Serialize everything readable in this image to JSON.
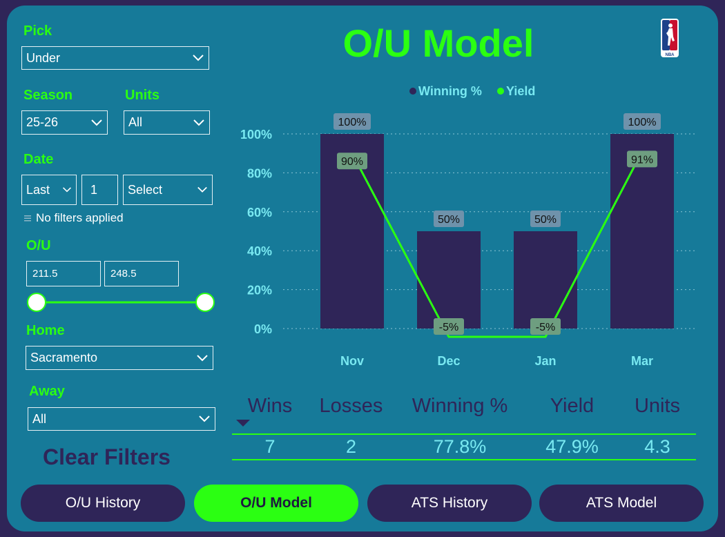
{
  "filters": {
    "pick": {
      "label": "Pick",
      "value": "Under"
    },
    "season": {
      "label": "Season",
      "value": "25-26"
    },
    "units": {
      "label": "Units",
      "value": "All"
    },
    "date": {
      "label": "Date",
      "mode": "Last",
      "count": "1",
      "period": "Select",
      "status": "No filters applied"
    },
    "ou": {
      "label": "O/U",
      "min": "211.5",
      "max": "248.5",
      "range_low_fraction": 0.0,
      "range_high_fraction": 1.0
    },
    "home": {
      "label": "Home",
      "value": "Sacramento"
    },
    "away": {
      "label": "Away",
      "value": "All"
    },
    "clear_label": "Clear Filters"
  },
  "page_title": "O/U Model",
  "logo": "nba-logo",
  "chart_data": {
    "type": "bar",
    "categories": [
      "Nov",
      "Dec",
      "Jan",
      "Mar"
    ],
    "series": [
      {
        "name": "Winning %",
        "kind": "bar",
        "values": [
          100,
          50,
          50,
          100
        ],
        "labels": [
          "100%",
          "50%",
          "50%",
          "100%"
        ],
        "color": "#2f2558"
      },
      {
        "name": "Yield",
        "kind": "line",
        "values": [
          90,
          -5,
          -5,
          91
        ],
        "labels": [
          "90%",
          "-5%",
          "-5%",
          "91%"
        ],
        "color": "#2bff12"
      }
    ],
    "yticks": [
      "0%",
      "20%",
      "40%",
      "60%",
      "80%",
      "100%"
    ],
    "ylim": [
      0,
      100
    ],
    "legend": "top-center",
    "grid": true
  },
  "summary": {
    "headers": [
      "Wins",
      "Losses",
      "Winning %",
      "Yield",
      "Units"
    ],
    "values": [
      "7",
      "2",
      "77.8%",
      "47.9%",
      "4.3"
    ]
  },
  "nav": [
    {
      "label": "O/U History",
      "active": false
    },
    {
      "label": "O/U Model",
      "active": true
    },
    {
      "label": "ATS History",
      "active": false
    },
    {
      "label": "ATS Model",
      "active": false
    }
  ],
  "colors": {
    "background": "#167a99",
    "accent": "#2bff12",
    "dark": "#2f2558",
    "light_text": "#79e9f1"
  }
}
